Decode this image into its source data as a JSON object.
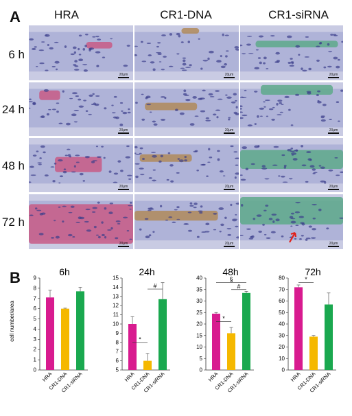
{
  "panel_a": {
    "letter": "A",
    "columns": [
      "HRA",
      "CR1-DNA",
      "CR1-siRNA"
    ],
    "rows": [
      "6 h",
      "24 h",
      "48 h",
      "72 h"
    ],
    "scale_label": "20µm",
    "stain_colors": {
      "background": "#c8cae2",
      "nuclei": "#3c3f8c",
      "pink": "#c85a86",
      "brown": "#b08a5a",
      "green": "#5ea98b"
    }
  },
  "panel_b": {
    "letter": "B",
    "ylabel": "cell number/area"
  },
  "chart_data": [
    {
      "type": "bar",
      "title": "6h",
      "categories": [
        "HRA",
        "CR1-DNA",
        "CR1-siRNA"
      ],
      "values": [
        7.1,
        6.0,
        7.7
      ],
      "errors": [
        0.7,
        0.05,
        0.4
      ],
      "colors": [
        "#d81b8f",
        "#f5b800",
        "#1aa84f"
      ],
      "ylim": [
        0,
        9
      ],
      "yticks": [
        0,
        1,
        2,
        3,
        4,
        5,
        6,
        7,
        8,
        9
      ],
      "significance": []
    },
    {
      "type": "bar",
      "title": "24h",
      "categories": [
        "HRA",
        "CR1-DNA",
        "CR1-siRNA"
      ],
      "values": [
        10.0,
        6.0,
        12.7
      ],
      "errors": [
        0.8,
        0.8,
        1.8
      ],
      "colors": [
        "#d81b8f",
        "#f5b800",
        "#1aa84f"
      ],
      "ylim": [
        5,
        15
      ],
      "yticks": [
        5,
        6,
        7,
        8,
        9,
        10,
        11,
        12,
        13,
        14,
        15
      ],
      "significance": [
        {
          "from": 0,
          "to": 1,
          "label": "*",
          "level": 8.0
        },
        {
          "from": 1,
          "to": 2,
          "label": "#",
          "level": 13.8
        }
      ]
    },
    {
      "type": "bar",
      "title": "48h",
      "categories": [
        "HRA",
        "CR1-DNA",
        "CR1-siRNA"
      ],
      "values": [
        24.5,
        16.0,
        33.5
      ],
      "errors": [
        0.5,
        2.5,
        0.7
      ],
      "colors": [
        "#d81b8f",
        "#f5b800",
        "#1aa84f"
      ],
      "ylim": [
        0,
        40
      ],
      "yticks": [
        0,
        5,
        10,
        15,
        20,
        25,
        30,
        35,
        40
      ],
      "significance": [
        {
          "from": 0,
          "to": 1,
          "label": "*",
          "level": 21.0
        },
        {
          "from": 1,
          "to": 2,
          "label": "#",
          "level": 35.0
        },
        {
          "from": 0,
          "to": 2,
          "label": "§",
          "level": 38.0
        }
      ]
    },
    {
      "type": "bar",
      "title": "72h",
      "categories": [
        "HRA",
        "CR1-DNA",
        "CR1-siRNA"
      ],
      "values": [
        72.0,
        29.0,
        57.0
      ],
      "errors": [
        2.0,
        1.0,
        10.0
      ],
      "colors": [
        "#d81b8f",
        "#f5b800",
        "#1aa84f"
      ],
      "ylim": [
        0,
        80
      ],
      "yticks": [
        0,
        10,
        20,
        30,
        40,
        50,
        60,
        70,
        80
      ],
      "significance": [
        {
          "from": 0,
          "to": 1,
          "label": "*",
          "level": 76.0
        }
      ]
    }
  ]
}
